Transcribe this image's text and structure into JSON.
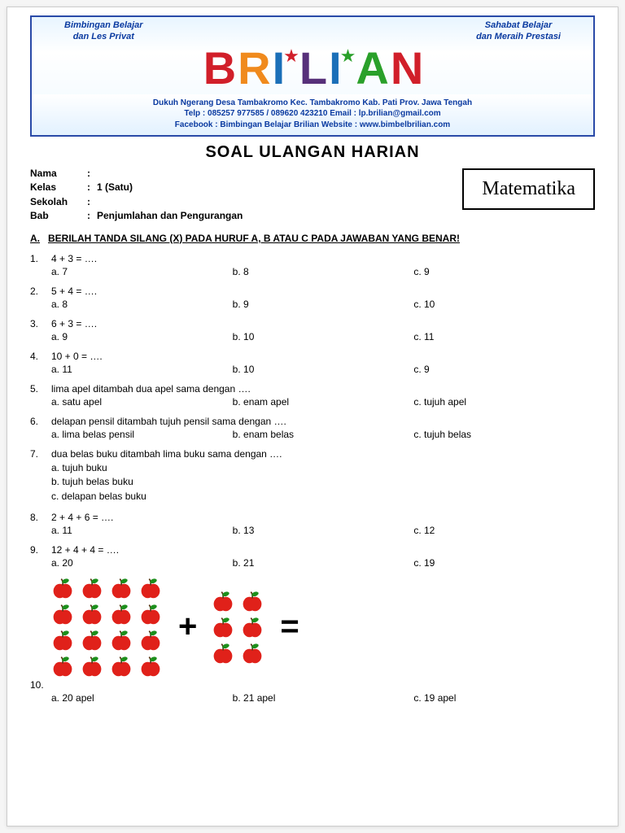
{
  "banner": {
    "tagline_left_1": "Bimbingan Belajar",
    "tagline_left_2": "dan Les Privat",
    "tagline_right_1": "Sahabat Belajar",
    "tagline_right_2": "dan Meraih Prestasi",
    "brand_letters": [
      {
        "char": "B",
        "color": "#d11f2a"
      },
      {
        "char": "R",
        "color": "#f08a1d"
      },
      {
        "char": "I",
        "color": "#1b6fb8"
      },
      {
        "char": "L",
        "color": "#57307a"
      },
      {
        "char": "I",
        "color": "#1b6fb8"
      },
      {
        "char": "A",
        "color": "#2aa02a"
      },
      {
        "char": "N",
        "color": "#d11f2a"
      }
    ],
    "stars": [
      {
        "after_index": 2,
        "color": "#d11f2a"
      },
      {
        "after_index": 4,
        "color": "#2aa02a"
      }
    ],
    "addr": "Dukuh Ngerang Desa Tambakromo Kec. Tambakromo Kab. Pati Prov. Jawa Tengah",
    "contact": "Telp : 085257 977585 / 089620 423210    Email : lp.brilian@gmail.com",
    "web": "Facebook : Bimbingan Belajar Brilian     Website : www.bimbelbrilian.com"
  },
  "title": "SOAL ULANGAN HARIAN",
  "info": {
    "nama_label": "Nama",
    "nama_val": "",
    "kelas_label": "Kelas",
    "kelas_val": "1 (Satu)",
    "sekolah_label": "Sekolah",
    "sekolah_val": "",
    "bab_label": "Bab",
    "bab_val": "Penjumlahan dan Pengurangan"
  },
  "subject": "Matematika",
  "section": {
    "letter": "A.",
    "text": "BERILAH TANDA SILANG (X) PADA HURUF A, B ATAU C PADA JAWABAN YANG BENAR!"
  },
  "questions": [
    {
      "n": "1.",
      "q": "4 + 3 = ….",
      "opts": [
        "a. 7",
        "b. 8",
        "c. 9"
      ],
      "layout": "row"
    },
    {
      "n": "2.",
      "q": "5 + 4 = ….",
      "opts": [
        "a. 8",
        "b. 9",
        "c. 10"
      ],
      "layout": "row"
    },
    {
      "n": "3.",
      "q": "6 + 3 = ….",
      "opts": [
        "a. 9",
        "b. 10",
        "c. 11"
      ],
      "layout": "row"
    },
    {
      "n": "4.",
      "q": "10 + 0 = ….",
      "opts": [
        "a. 11",
        "b. 10",
        "c. 9"
      ],
      "layout": "row"
    },
    {
      "n": "5.",
      "q": "lima apel ditambah dua apel sama dengan ….",
      "opts": [
        "a. satu apel",
        "b. enam apel",
        "c. tujuh apel"
      ],
      "layout": "row"
    },
    {
      "n": "6.",
      "q": "delapan pensil ditambah tujuh pensil sama dengan ….",
      "opts": [
        "a. lima belas pensil",
        "b. enam belas",
        "c. tujuh belas"
      ],
      "layout": "row"
    },
    {
      "n": "7.",
      "q": "dua belas buku ditambah lima buku sama dengan ….",
      "opts": [
        "a. tujuh buku",
        "b. tujuh belas buku",
        "c. delapan belas buku"
      ],
      "layout": "col"
    },
    {
      "n": "8.",
      "q": "2 + 4 + 6 = ….",
      "opts": [
        "a. 11",
        "b. 13",
        "c. 12"
      ],
      "layout": "row"
    },
    {
      "n": "9.",
      "q": "12 + 4 + 4 = ….",
      "opts": [
        "a. 20",
        "b. 21",
        "c. 19"
      ],
      "layout": "row"
    }
  ],
  "apple_question": {
    "n": "10.",
    "left_count": 16,
    "right_count": 6,
    "op_plus": "+",
    "op_eq": "=",
    "apple_color": "#e0211a",
    "leaf_color": "#1c8f1c",
    "opts": [
      "a. 20 apel",
      "b. 21  apel",
      "c. 19  apel"
    ]
  }
}
